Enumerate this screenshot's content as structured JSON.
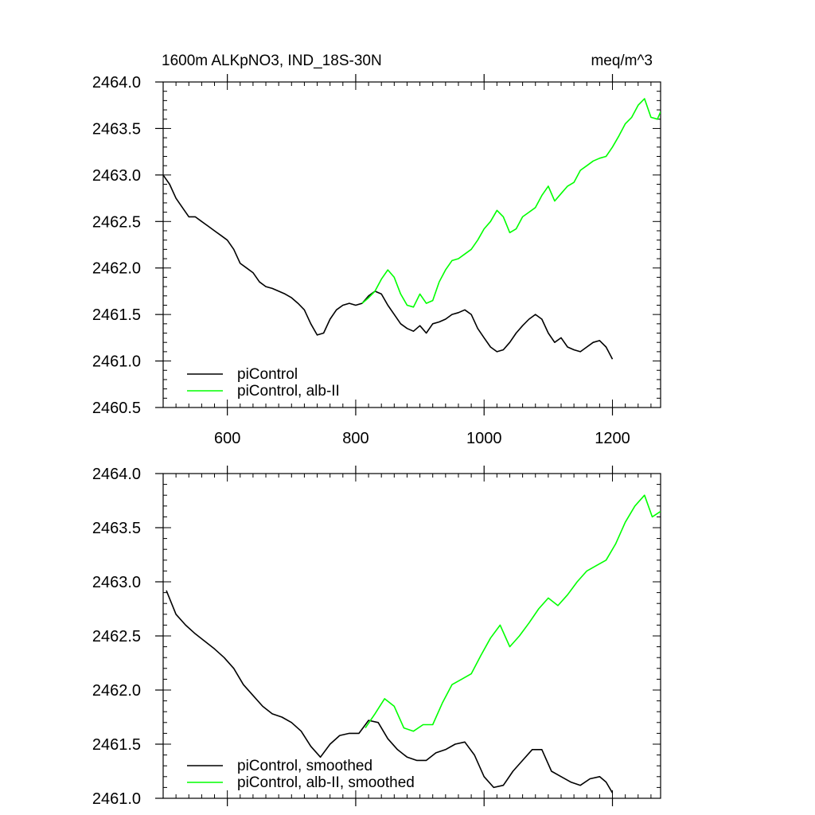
{
  "colors": {
    "piControl": "#000000",
    "alb_II": "#00ff00",
    "axis": "#000000"
  },
  "chart_data": [
    {
      "type": "line",
      "title": "1600m ALKpNO3, IND_18S-30N",
      "units": "meq/m^3",
      "xlim": [
        500,
        1275
      ],
      "ylim": [
        2460.5,
        2464.0
      ],
      "x_ticks": [
        600,
        800,
        1000,
        1200
      ],
      "x_tick_labels": [
        "600",
        "800",
        "1000",
        "1200"
      ],
      "y_ticks": [
        2460.5,
        2461.0,
        2461.5,
        2462.0,
        2462.5,
        2463.0,
        2463.5,
        2464.0
      ],
      "y_tick_labels": [
        "2460.5",
        "2461.0",
        "2461.5",
        "2462.0",
        "2462.5",
        "2463.0",
        "2463.5",
        "2464.0"
      ],
      "legend_position": "bottom-left",
      "series": [
        {
          "name": "piControl",
          "color": "#000000",
          "points": [
            [
              500,
              2463.0
            ],
            [
              510,
              2462.9
            ],
            [
              520,
              2462.75
            ],
            [
              530,
              2462.65
            ],
            [
              540,
              2462.55
            ],
            [
              550,
              2462.55
            ],
            [
              560,
              2462.5
            ],
            [
              570,
              2462.45
            ],
            [
              580,
              2462.4
            ],
            [
              590,
              2462.35
            ],
            [
              600,
              2462.3
            ],
            [
              610,
              2462.2
            ],
            [
              620,
              2462.05
            ],
            [
              630,
              2462.0
            ],
            [
              640,
              2461.95
            ],
            [
              650,
              2461.85
            ],
            [
              660,
              2461.8
            ],
            [
              670,
              2461.78
            ],
            [
              680,
              2461.75
            ],
            [
              690,
              2461.72
            ],
            [
              700,
              2461.68
            ],
            [
              710,
              2461.62
            ],
            [
              720,
              2461.55
            ],
            [
              730,
              2461.4
            ],
            [
              740,
              2461.28
            ],
            [
              750,
              2461.3
            ],
            [
              760,
              2461.45
            ],
            [
              770,
              2461.55
            ],
            [
              780,
              2461.6
            ],
            [
              790,
              2461.62
            ],
            [
              800,
              2461.6
            ],
            [
              810,
              2461.62
            ],
            [
              820,
              2461.7
            ],
            [
              830,
              2461.75
            ],
            [
              840,
              2461.72
            ],
            [
              850,
              2461.6
            ],
            [
              860,
              2461.5
            ],
            [
              870,
              2461.4
            ],
            [
              880,
              2461.35
            ],
            [
              890,
              2461.32
            ],
            [
              900,
              2461.38
            ],
            [
              910,
              2461.3
            ],
            [
              920,
              2461.4
            ],
            [
              930,
              2461.42
            ],
            [
              940,
              2461.45
            ],
            [
              950,
              2461.5
            ],
            [
              960,
              2461.52
            ],
            [
              970,
              2461.55
            ],
            [
              980,
              2461.5
            ],
            [
              990,
              2461.35
            ],
            [
              1000,
              2461.25
            ],
            [
              1010,
              2461.15
            ],
            [
              1020,
              2461.1
            ],
            [
              1030,
              2461.12
            ],
            [
              1040,
              2461.2
            ],
            [
              1050,
              2461.3
            ],
            [
              1060,
              2461.38
            ],
            [
              1070,
              2461.45
            ],
            [
              1080,
              2461.5
            ],
            [
              1090,
              2461.45
            ],
            [
              1100,
              2461.3
            ],
            [
              1110,
              2461.2
            ],
            [
              1120,
              2461.25
            ],
            [
              1130,
              2461.15
            ],
            [
              1140,
              2461.12
            ],
            [
              1150,
              2461.1
            ],
            [
              1160,
              2461.15
            ],
            [
              1170,
              2461.2
            ],
            [
              1180,
              2461.22
            ],
            [
              1190,
              2461.15
            ],
            [
              1200,
              2461.02
            ]
          ]
        },
        {
          "name": "piControl, alb-II",
          "color": "#00ff00",
          "points": [
            [
              810,
              2461.62
            ],
            [
              820,
              2461.68
            ],
            [
              830,
              2461.75
            ],
            [
              840,
              2461.88
            ],
            [
              850,
              2461.98
            ],
            [
              860,
              2461.9
            ],
            [
              870,
              2461.72
            ],
            [
              880,
              2461.6
            ],
            [
              890,
              2461.58
            ],
            [
              900,
              2461.72
            ],
            [
              910,
              2461.62
            ],
            [
              920,
              2461.65
            ],
            [
              930,
              2461.85
            ],
            [
              940,
              2461.98
            ],
            [
              950,
              2462.08
            ],
            [
              960,
              2462.1
            ],
            [
              970,
              2462.15
            ],
            [
              980,
              2462.2
            ],
            [
              990,
              2462.3
            ],
            [
              1000,
              2462.42
            ],
            [
              1010,
              2462.5
            ],
            [
              1020,
              2462.62
            ],
            [
              1030,
              2462.55
            ],
            [
              1040,
              2462.38
            ],
            [
              1050,
              2462.42
            ],
            [
              1060,
              2462.55
            ],
            [
              1070,
              2462.6
            ],
            [
              1080,
              2462.65
            ],
            [
              1090,
              2462.78
            ],
            [
              1100,
              2462.88
            ],
            [
              1110,
              2462.72
            ],
            [
              1120,
              2462.8
            ],
            [
              1130,
              2462.88
            ],
            [
              1140,
              2462.92
            ],
            [
              1150,
              2463.05
            ],
            [
              1160,
              2463.1
            ],
            [
              1170,
              2463.15
            ],
            [
              1180,
              2463.18
            ],
            [
              1190,
              2463.2
            ],
            [
              1200,
              2463.3
            ],
            [
              1210,
              2463.42
            ],
            [
              1220,
              2463.55
            ],
            [
              1230,
              2463.62
            ],
            [
              1240,
              2463.75
            ],
            [
              1250,
              2463.82
            ],
            [
              1260,
              2463.62
            ],
            [
              1270,
              2463.6
            ],
            [
              1275,
              2463.68
            ]
          ]
        }
      ]
    },
    {
      "type": "line",
      "xlim": [
        500,
        1275
      ],
      "ylim": [
        2461.0,
        2464.0
      ],
      "x_ticks": [
        600,
        800,
        1000,
        1200
      ],
      "x_tick_labels": [
        "",
        "",
        "",
        ""
      ],
      "y_ticks": [
        2461.0,
        2461.5,
        2462.0,
        2462.5,
        2463.0,
        2463.5,
        2464.0
      ],
      "y_tick_labels": [
        "2461.0",
        "2461.5",
        "2462.0",
        "2462.5",
        "2463.0",
        "2463.5",
        "2464.0"
      ],
      "legend_position": "bottom-left",
      "series": [
        {
          "name": "piControl, smoothed",
          "color": "#000000",
          "points": [
            [
              505,
              2462.92
            ],
            [
              520,
              2462.7
            ],
            [
              535,
              2462.6
            ],
            [
              550,
              2462.52
            ],
            [
              565,
              2462.45
            ],
            [
              580,
              2462.38
            ],
            [
              595,
              2462.3
            ],
            [
              610,
              2462.2
            ],
            [
              625,
              2462.05
            ],
            [
              640,
              2461.95
            ],
            [
              655,
              2461.85
            ],
            [
              670,
              2461.78
            ],
            [
              685,
              2461.75
            ],
            [
              700,
              2461.7
            ],
            [
              715,
              2461.62
            ],
            [
              730,
              2461.48
            ],
            [
              745,
              2461.38
            ],
            [
              760,
              2461.5
            ],
            [
              775,
              2461.58
            ],
            [
              790,
              2461.6
            ],
            [
              805,
              2461.6
            ],
            [
              820,
              2461.72
            ],
            [
              835,
              2461.7
            ],
            [
              850,
              2461.55
            ],
            [
              865,
              2461.45
            ],
            [
              880,
              2461.38
            ],
            [
              895,
              2461.35
            ],
            [
              910,
              2461.35
            ],
            [
              925,
              2461.42
            ],
            [
              940,
              2461.45
            ],
            [
              955,
              2461.5
            ],
            [
              970,
              2461.52
            ],
            [
              985,
              2461.4
            ],
            [
              1000,
              2461.2
            ],
            [
              1015,
              2461.1
            ],
            [
              1030,
              2461.12
            ],
            [
              1045,
              2461.25
            ],
            [
              1060,
              2461.35
            ],
            [
              1075,
              2461.45
            ],
            [
              1090,
              2461.45
            ],
            [
              1105,
              2461.25
            ],
            [
              1120,
              2461.2
            ],
            [
              1135,
              2461.15
            ],
            [
              1150,
              2461.12
            ],
            [
              1165,
              2461.18
            ],
            [
              1180,
              2461.2
            ],
            [
              1190,
              2461.15
            ],
            [
              1200,
              2461.05
            ]
          ]
        },
        {
          "name": "piControl, alb-II, smoothed",
          "color": "#00ff00",
          "points": [
            [
              815,
              2461.65
            ],
            [
              830,
              2461.78
            ],
            [
              845,
              2461.92
            ],
            [
              860,
              2461.85
            ],
            [
              875,
              2461.65
            ],
            [
              890,
              2461.62
            ],
            [
              905,
              2461.68
            ],
            [
              920,
              2461.68
            ],
            [
              935,
              2461.88
            ],
            [
              950,
              2462.05
            ],
            [
              965,
              2462.1
            ],
            [
              980,
              2462.15
            ],
            [
              995,
              2462.32
            ],
            [
              1010,
              2462.48
            ],
            [
              1025,
              2462.6
            ],
            [
              1040,
              2462.4
            ],
            [
              1055,
              2462.5
            ],
            [
              1070,
              2462.62
            ],
            [
              1085,
              2462.75
            ],
            [
              1100,
              2462.85
            ],
            [
              1115,
              2462.78
            ],
            [
              1130,
              2462.88
            ],
            [
              1145,
              2463.0
            ],
            [
              1160,
              2463.1
            ],
            [
              1175,
              2463.15
            ],
            [
              1190,
              2463.2
            ],
            [
              1205,
              2463.35
            ],
            [
              1220,
              2463.55
            ],
            [
              1235,
              2463.7
            ],
            [
              1250,
              2463.8
            ],
            [
              1262,
              2463.6
            ],
            [
              1275,
              2463.65
            ]
          ]
        }
      ]
    }
  ]
}
